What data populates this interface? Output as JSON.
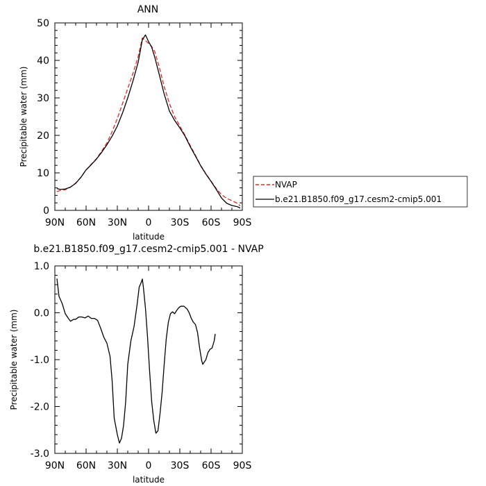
{
  "chart_data": [
    {
      "type": "line",
      "title": "ANN",
      "xlabel": "latitude",
      "ylabel": "Precipitable water  (mm)",
      "xlim": [
        90,
        -90
      ],
      "ylim": [
        0,
        50
      ],
      "xticks": [
        90,
        60,
        30,
        0,
        -30,
        -60,
        -90
      ],
      "xtick_labels": [
        "90N",
        "60N",
        "30N",
        "0",
        "30S",
        "60S",
        "90S"
      ],
      "yticks": [
        0,
        10,
        20,
        30,
        40,
        50
      ],
      "ytick_labels": [
        "0",
        "10",
        "20",
        "30",
        "40",
        "50"
      ],
      "legend_position": "right",
      "series": [
        {
          "name": "NVAP",
          "color": "#e8241d",
          "dash": true,
          "points": [
            [
              88,
              5.0
            ],
            [
              85,
              5.3
            ],
            [
              80,
              5.5
            ],
            [
              75,
              6.2
            ],
            [
              70,
              7.3
            ],
            [
              65,
              8.8
            ],
            [
              60,
              10.8
            ],
            [
              55,
              12.3
            ],
            [
              50,
              13.8
            ],
            [
              45,
              15.8
            ],
            [
              40,
              18.0
            ],
            [
              35,
              21.0
            ],
            [
              30,
              24.5
            ],
            [
              25,
              28.5
            ],
            [
              20,
              32.5
            ],
            [
              15,
              36.5
            ],
            [
              10,
              41.0
            ],
            [
              6,
              46.0
            ],
            [
              3,
              45.3
            ],
            [
              0,
              44.5
            ],
            [
              -3,
              43.7
            ],
            [
              -6,
              42.3
            ],
            [
              -10,
              38.5
            ],
            [
              -15,
              33.0
            ],
            [
              -20,
              28.5
            ],
            [
              -25,
              25.0
            ],
            [
              -30,
              22.5
            ],
            [
              -35,
              20.0
            ],
            [
              -40,
              17.3
            ],
            [
              -45,
              14.7
            ],
            [
              -50,
              12.0
            ],
            [
              -55,
              9.8
            ],
            [
              -60,
              7.8
            ],
            [
              -65,
              5.8
            ],
            [
              -70,
              4.2
            ],
            [
              -75,
              3.2
            ],
            [
              -80,
              2.6
            ],
            [
              -85,
              1.9
            ],
            [
              -88,
              1.2
            ]
          ]
        },
        {
          "name": "b.e21.B1850.f09_g17.cesm2-cmip5.001",
          "color": "#000000",
          "dash": false,
          "points": [
            [
              88,
              5.8
            ],
            [
              85,
              5.6
            ],
            [
              80,
              5.7
            ],
            [
              75,
              6.2
            ],
            [
              70,
              7.2
            ],
            [
              65,
              8.8
            ],
            [
              60,
              10.8
            ],
            [
              55,
              12.2
            ],
            [
              50,
              13.7
            ],
            [
              45,
              15.5
            ],
            [
              40,
              17.5
            ],
            [
              35,
              19.8
            ],
            [
              30,
              22.5
            ],
            [
              25,
              26.0
            ],
            [
              20,
              30.0
            ],
            [
              15,
              34.5
            ],
            [
              10,
              39.5
            ],
            [
              6,
              45.5
            ],
            [
              3,
              46.8
            ],
            [
              0,
              45.0
            ],
            [
              -3,
              43.5
            ],
            [
              -6,
              40.8
            ],
            [
              -10,
              36.5
            ],
            [
              -15,
              31.0
            ],
            [
              -20,
              26.5
            ],
            [
              -25,
              24.0
            ],
            [
              -30,
              22.0
            ],
            [
              -35,
              19.8
            ],
            [
              -40,
              17.0
            ],
            [
              -45,
              14.5
            ],
            [
              -50,
              11.9
            ],
            [
              -55,
              9.7
            ],
            [
              -60,
              7.7
            ],
            [
              -65,
              5.6
            ],
            [
              -70,
              3.3
            ],
            [
              -75,
              1.9
            ],
            [
              -80,
              1.3
            ],
            [
              -85,
              1.0
            ],
            [
              -88,
              0.6
            ]
          ]
        }
      ]
    },
    {
      "type": "line",
      "title": "b.e21.B1850.f09_g17.cesm2-cmip5.001 - NVAP",
      "xlabel": "latitude",
      "ylabel": "Precipitable water  (mm)",
      "xlim": [
        90,
        -90
      ],
      "ylim": [
        -3,
        1
      ],
      "xticks": [
        90,
        60,
        30,
        0,
        -30,
        -60,
        -90
      ],
      "xtick_labels": [
        "90N",
        "60N",
        "30N",
        "0",
        "30S",
        "60S",
        "90S"
      ],
      "yticks": [
        -3,
        -2,
        -1,
        0,
        1
      ],
      "ytick_labels": [
        "-3.0",
        "-2.0",
        "-1.0",
        "0.0",
        "1.0"
      ],
      "series": [
        {
          "color": "#000000",
          "dash": false,
          "points": [
            [
              88,
              0.73
            ],
            [
              86,
              0.35
            ],
            [
              83,
              0.2
            ],
            [
              80,
              -0.02
            ],
            [
              77,
              -0.12
            ],
            [
              75,
              -0.18
            ],
            [
              72,
              -0.14
            ],
            [
              70,
              -0.14
            ],
            [
              67,
              -0.09
            ],
            [
              64,
              -0.09
            ],
            [
              61,
              -0.11
            ],
            [
              58,
              -0.07
            ],
            [
              55,
              -0.12
            ],
            [
              52,
              -0.12
            ],
            [
              49,
              -0.16
            ],
            [
              46,
              -0.33
            ],
            [
              43,
              -0.52
            ],
            [
              40,
              -0.65
            ],
            [
              37,
              -0.93
            ],
            [
              35,
              -1.45
            ],
            [
              33,
              -2.25
            ],
            [
              30,
              -2.6
            ],
            [
              28,
              -2.78
            ],
            [
              26,
              -2.68
            ],
            [
              24,
              -2.4
            ],
            [
              22,
              -1.9
            ],
            [
              20,
              -1.1
            ],
            [
              17,
              -0.6
            ],
            [
              14,
              -0.3
            ],
            [
              11,
              0.18
            ],
            [
              9,
              0.55
            ],
            [
              7,
              0.65
            ],
            [
              6,
              0.72
            ],
            [
              5,
              0.55
            ],
            [
              3,
              0.1
            ],
            [
              1,
              -0.52
            ],
            [
              -1,
              -1.25
            ],
            [
              -3,
              -1.9
            ],
            [
              -5,
              -2.3
            ],
            [
              -7,
              -2.57
            ],
            [
              -9,
              -2.52
            ],
            [
              -11,
              -2.15
            ],
            [
              -13,
              -1.7
            ],
            [
              -15,
              -1.1
            ],
            [
              -17,
              -0.55
            ],
            [
              -19,
              -0.2
            ],
            [
              -21,
              -0.02
            ],
            [
              -23,
              0.02
            ],
            [
              -25,
              -0.02
            ],
            [
              -27,
              0.05
            ],
            [
              -29,
              0.11
            ],
            [
              -31,
              0.14
            ],
            [
              -34,
              0.14
            ],
            [
              -37,
              0.08
            ],
            [
              -39,
              0.0
            ],
            [
              -41,
              -0.12
            ],
            [
              -43,
              -0.2
            ],
            [
              -45,
              -0.25
            ],
            [
              -47,
              -0.42
            ],
            [
              -49,
              -0.75
            ],
            [
              -51,
              -1.02
            ],
            [
              -52,
              -1.1
            ],
            [
              -55,
              -1.0
            ],
            [
              -57,
              -0.85
            ],
            [
              -59,
              -0.78
            ],
            [
              -61,
              -0.75
            ],
            [
              -63,
              -0.6
            ],
            [
              -64,
              -0.45
            ]
          ]
        }
      ]
    }
  ]
}
